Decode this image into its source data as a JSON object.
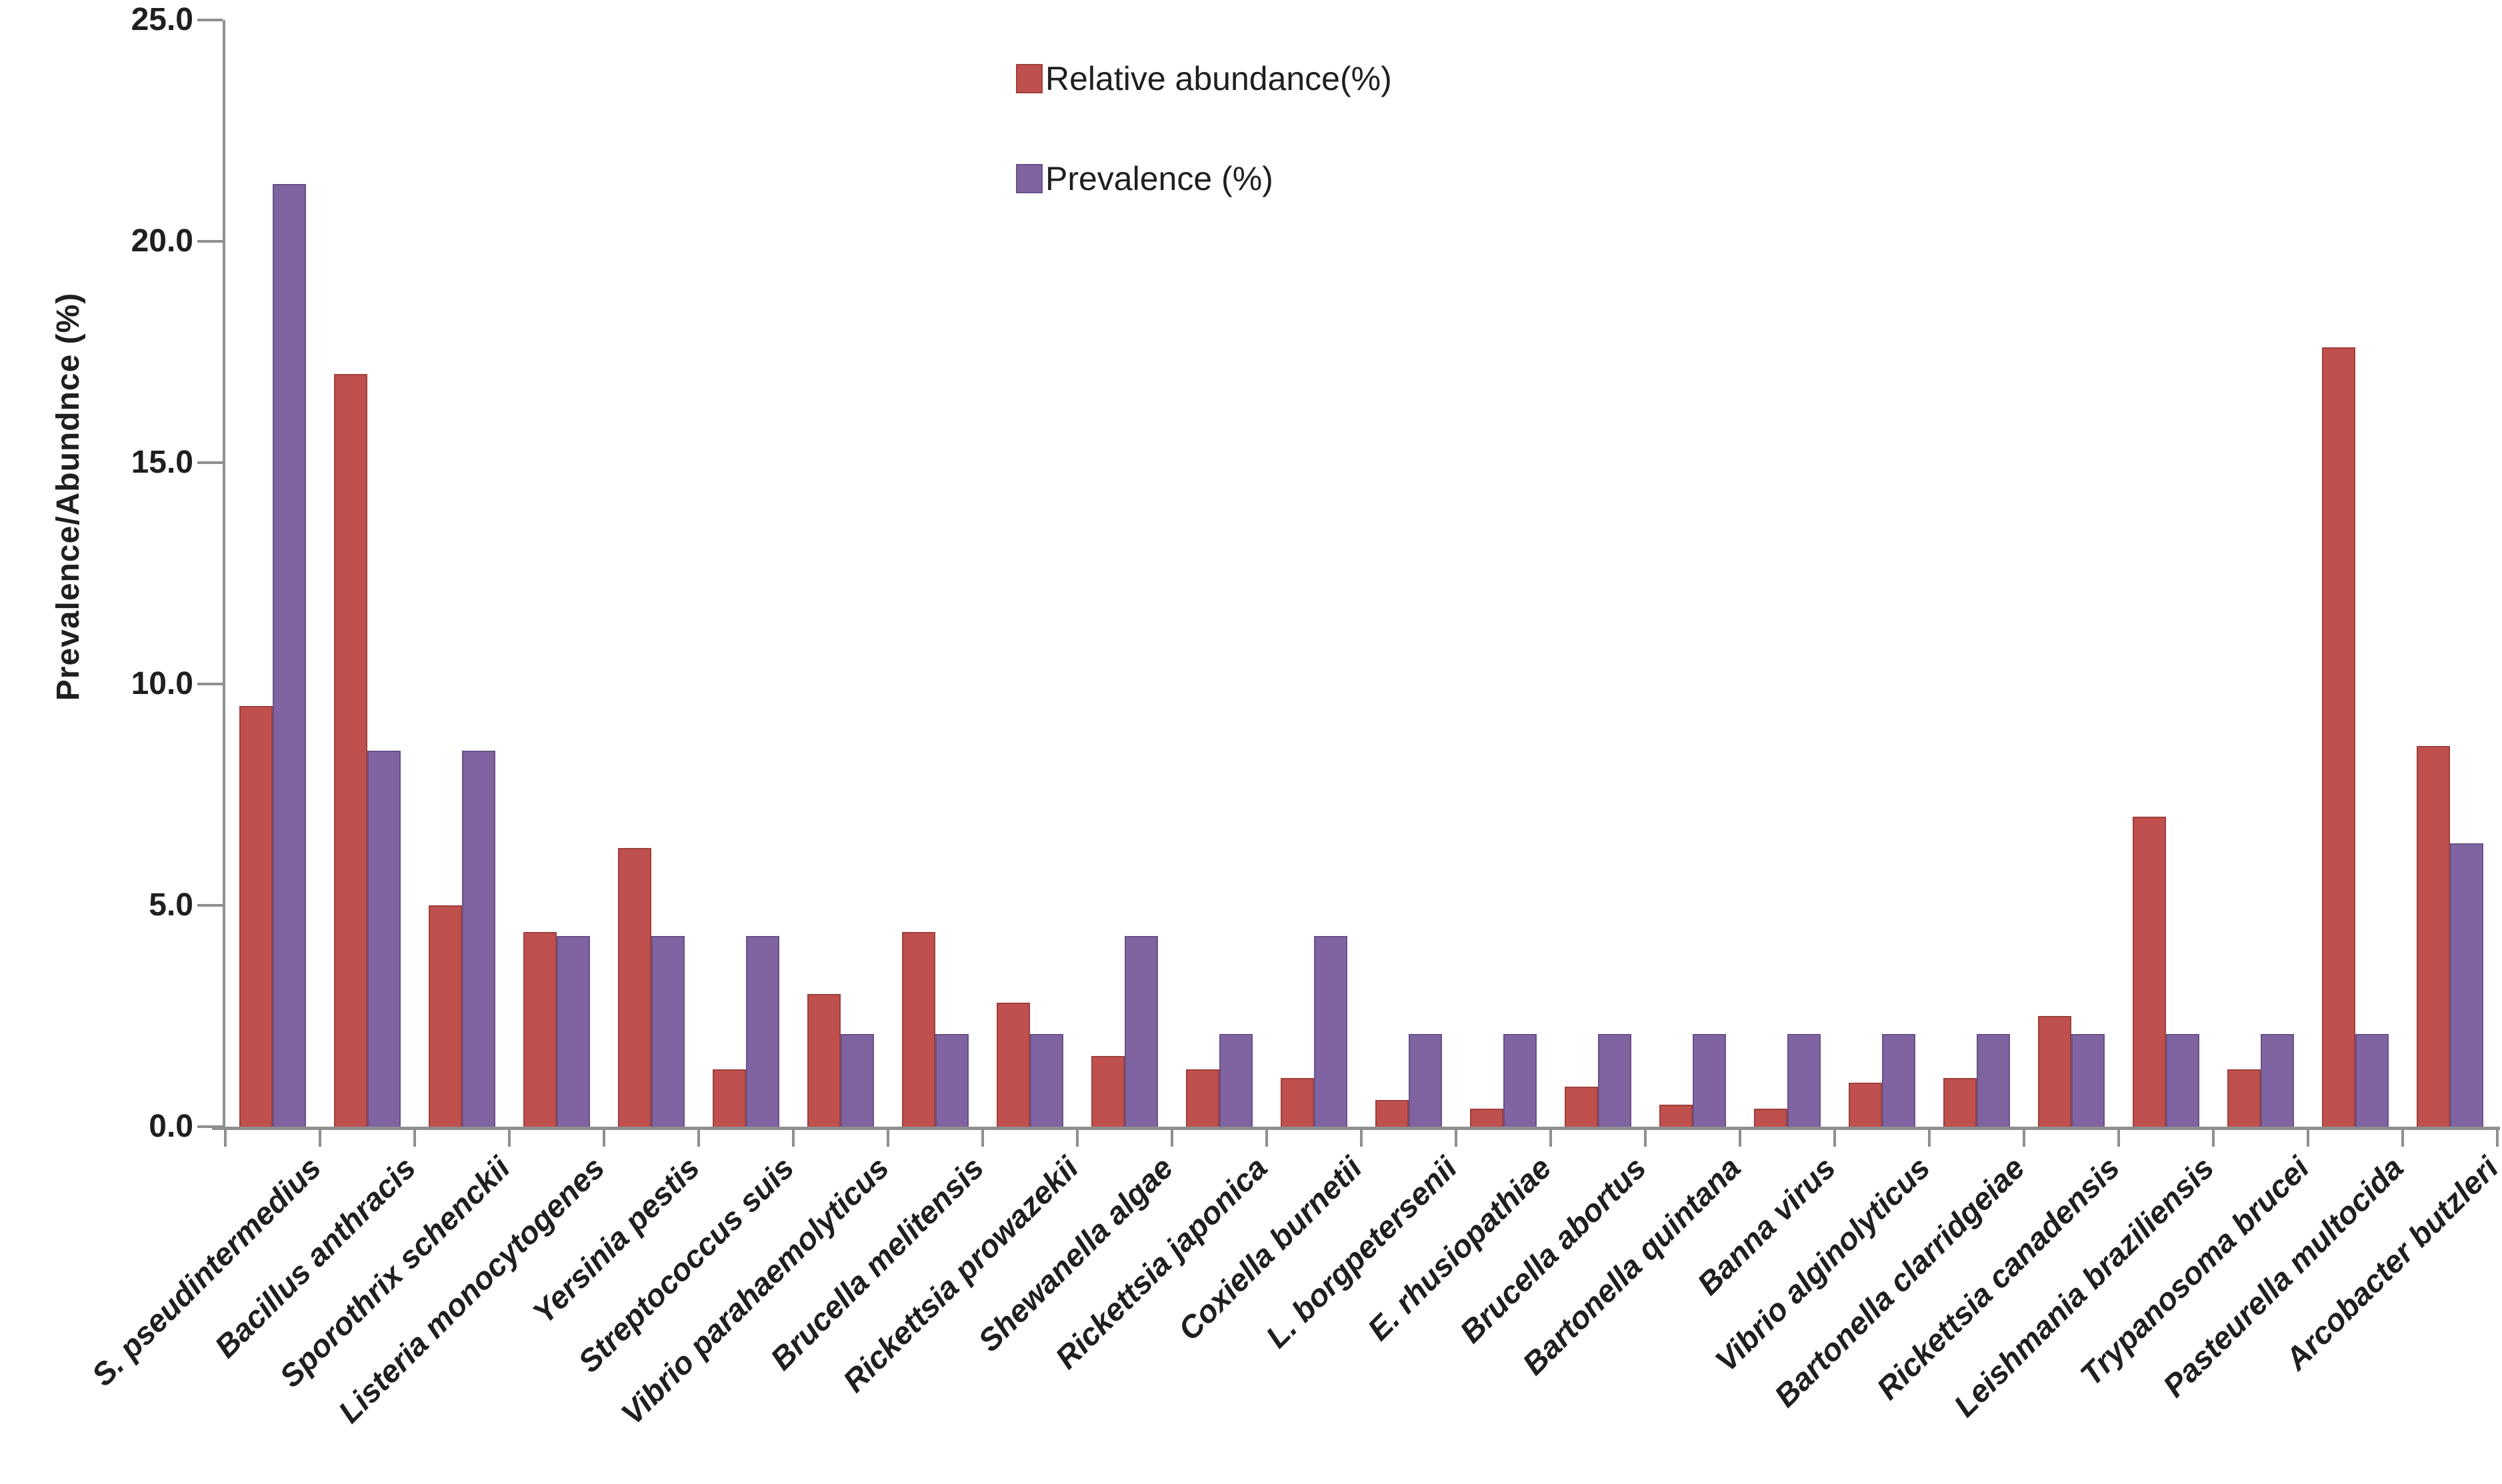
{
  "chart_data": {
    "type": "bar",
    "title": "",
    "xlabel": "",
    "ylabel": "Prevalence/Abundnce (%)",
    "ylim": [
      0,
      25
    ],
    "grid": false,
    "legend_position": "top-center",
    "ytick_values": [
      25,
      20,
      15,
      10,
      5,
      0
    ],
    "ytick_labels": [
      "25.0",
      "20.0",
      "15.0",
      "10.0",
      "5.0",
      "0.0"
    ],
    "categories": [
      "S. pseudintermedius",
      "Bacillus anthracis",
      "Sporothrix schenckii",
      "Listeria monocytogenes",
      "Yersinia pestis",
      "Streptococcus suis",
      "Vibrio parahaemolyticus",
      "Brucella melitensis",
      "Rickettsia prowazekii",
      "Shewanella algae",
      "Rickettsia japonica",
      "Coxiella burnetii",
      "L. borgpetersenii",
      "E. rhusiopathiae",
      "Brucella abortus",
      "Bartonella quintana",
      "Banna virus",
      "Vibrio alginolyticus",
      "Bartonella clarridgeiae",
      "Rickettsia canadensis",
      "Leishmania braziliensis",
      "Trypanosoma brucei",
      "Pasteurella multocida",
      "Arcobacter butzleri"
    ],
    "series": [
      {
        "name": "Relative abundance(%)",
        "color": "#c0504d",
        "border_color": "#9d403e",
        "values": [
          9.5,
          17.0,
          5.0,
          4.4,
          6.3,
          1.3,
          3.0,
          4.4,
          2.8,
          1.6,
          1.3,
          1.1,
          0.6,
          0.4,
          0.9,
          0.5,
          0.4,
          1.0,
          1.1,
          2.5,
          7.0,
          1.3,
          17.6,
          8.6
        ]
      },
      {
        "name": "Prevalence (%)",
        "color": "#8064a2",
        "border_color": "#685187",
        "values": [
          21.3,
          8.5,
          8.5,
          4.3,
          4.3,
          4.3,
          2.1,
          2.1,
          2.1,
          4.3,
          2.1,
          4.3,
          2.1,
          2.1,
          2.1,
          2.1,
          2.1,
          2.1,
          2.1,
          2.1,
          2.1,
          2.1,
          2.1,
          6.4
        ]
      }
    ],
    "axis_color": "#8f8f8f",
    "background_color": "#ffffff"
  }
}
